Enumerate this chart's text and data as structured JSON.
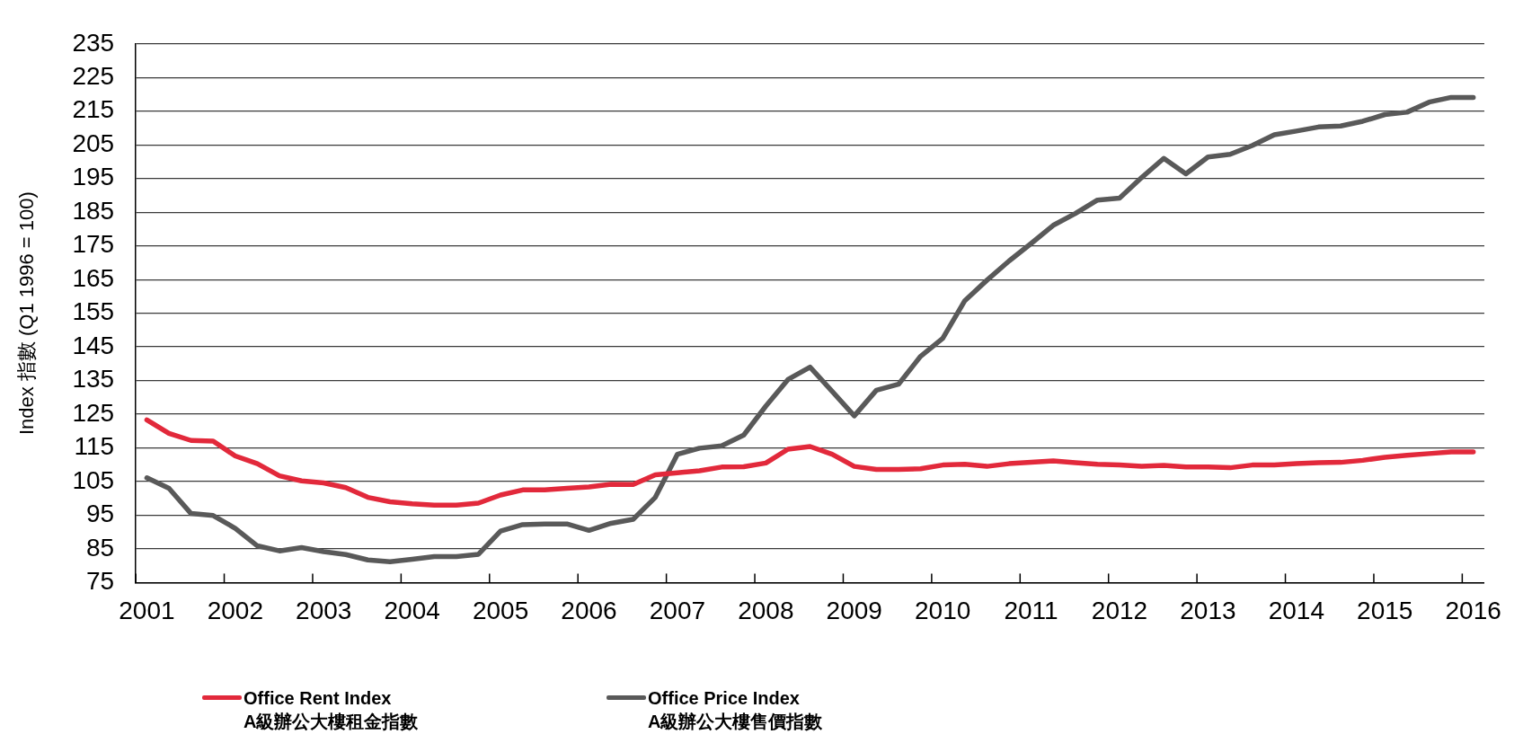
{
  "chart_data": {
    "type": "line",
    "ylabel": "Index 指數 (Q1 1996 = 100)",
    "categories": [
      "2001",
      null,
      null,
      null,
      "2002",
      null,
      null,
      null,
      "2003",
      null,
      null,
      null,
      "2004",
      null,
      null,
      null,
      "2005",
      null,
      null,
      null,
      "2006",
      null,
      null,
      null,
      "2007",
      null,
      null,
      null,
      "2008",
      null,
      null,
      null,
      "2009",
      null,
      null,
      null,
      "2010",
      null,
      null,
      null,
      "2011",
      null,
      null,
      null,
      "2012",
      null,
      null,
      null,
      "2013",
      null,
      null,
      null,
      "2014",
      null,
      null,
      null,
      "2015",
      null,
      null,
      null,
      "2016"
    ],
    "series": [
      {
        "name": "Office Rent Index\nA級辦公大樓租金指數",
        "color": "#e2293b",
        "values": [
          123.3,
          119.3,
          117.2,
          117.0,
          112.6,
          110.3,
          106.7,
          105.2,
          104.6,
          103.2,
          100.3,
          99.0,
          98.4,
          98.0,
          98.0,
          98.6,
          101.0,
          102.5,
          102.5,
          103.0,
          103.4,
          104.2,
          104.1,
          107.0,
          107.6,
          108.2,
          109.3,
          109.4,
          110.5,
          114.6,
          115.4,
          113.1,
          109.5,
          108.6,
          108.6,
          108.8,
          109.9,
          110.1,
          109.5,
          110.3,
          110.7,
          111.1,
          110.6,
          110.1,
          109.9,
          109.5,
          109.8,
          109.3,
          109.3,
          109.1,
          109.9,
          109.9,
          110.3,
          110.6,
          110.7,
          111.3,
          112.2,
          112.8,
          113.3,
          113.8,
          113.8
        ]
      },
      {
        "name": "Office Price Index\nA級辦公大樓售價指數",
        "color": "#595959",
        "values": [
          106.1,
          103.0,
          95.5,
          94.9,
          91.1,
          85.9,
          84.4,
          85.4,
          84.2,
          83.3,
          81.7,
          81.2,
          81.9,
          82.7,
          82.7,
          83.4,
          90.3,
          92.2,
          92.4,
          92.4,
          90.5,
          92.6,
          93.8,
          100.3,
          113.1,
          114.9,
          115.6,
          118.8,
          127.4,
          135.3,
          139.0,
          131.8,
          124.5,
          132.1,
          133.9,
          142.2,
          147.5,
          158.7,
          164.8,
          170.5,
          175.7,
          181.1,
          184.6,
          188.6,
          189.2,
          195.3,
          201.0,
          196.4,
          201.4,
          202.2,
          204.8,
          208.0,
          209.1,
          210.3,
          210.6,
          212.0,
          214.0,
          214.7,
          217.7,
          219.1,
          219.1
        ]
      }
    ],
    "ylim": [
      75,
      235
    ],
    "yticks": [
      75,
      85,
      95,
      105,
      115,
      125,
      135,
      145,
      155,
      165,
      175,
      185,
      195,
      205,
      215,
      225,
      235
    ],
    "grid": "y",
    "legend": "bottom",
    "marker": "none",
    "line_style": "solid"
  }
}
